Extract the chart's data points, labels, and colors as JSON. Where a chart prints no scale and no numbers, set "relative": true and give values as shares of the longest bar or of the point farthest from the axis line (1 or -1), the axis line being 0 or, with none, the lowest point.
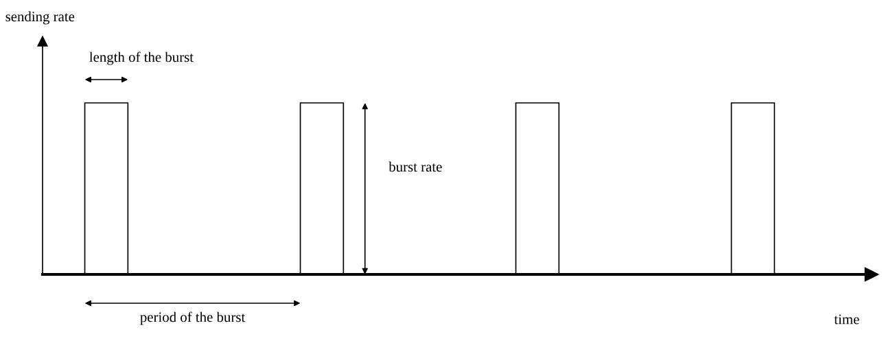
{
  "chart_data": {
    "type": "bar",
    "relative": true,
    "categories": [
      null,
      null,
      null,
      null
    ],
    "values": [
      1,
      1,
      1,
      1
    ],
    "color": "#ffffff",
    "xlabel": "time",
    "annotations": [
      "sending rate",
      "length of the burst",
      "burst rate",
      "period of the burst"
    ],
    "grid": false
  }
}
